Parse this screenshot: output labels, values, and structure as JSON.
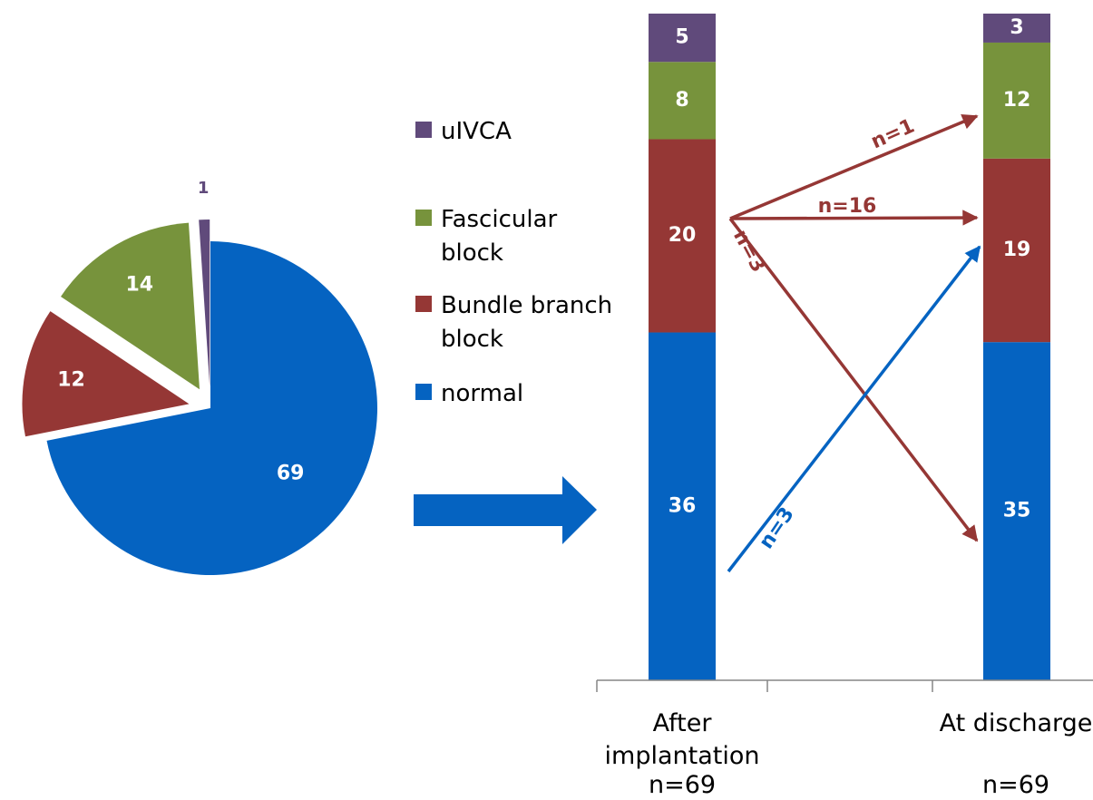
{
  "colors": {
    "normal": "#0563C1",
    "bundle_branch_block": "#953735",
    "fascicular_block": "#77933C",
    "uivca": "#604A7B",
    "axis": "#868686"
  },
  "legend": {
    "items": [
      {
        "key": "uivca",
        "lines": [
          "uIVCA"
        ]
      },
      {
        "key": "fascicular_block",
        "lines": [
          "Fascicular",
          "block"
        ]
      },
      {
        "key": "bundle_branch_block",
        "lines": [
          "Bundle branch",
          "block"
        ]
      },
      {
        "key": "normal",
        "lines": [
          "normal"
        ]
      }
    ]
  },
  "chart_data": [
    {
      "type": "pie",
      "exploded": true,
      "slices": [
        {
          "key": "normal",
          "value": 69,
          "label": "69"
        },
        {
          "key": "bundle_branch_block",
          "value": 12,
          "label": "12"
        },
        {
          "key": "fascicular_block",
          "value": 14,
          "label": "14"
        },
        {
          "key": "uivca",
          "value": 1,
          "label": "1"
        }
      ]
    },
    {
      "type": "bar",
      "stacked": true,
      "categories": [
        {
          "lines": [
            "After",
            "implantation"
          ],
          "n_label": "n=69"
        },
        {
          "lines": [
            "At discharge"
          ],
          "n_label": "n=69"
        }
      ],
      "series": [
        {
          "key": "normal",
          "values": [
            36,
            35
          ]
        },
        {
          "key": "bundle_branch_block",
          "values": [
            20,
            19
          ]
        },
        {
          "key": "fascicular_block",
          "values": [
            8,
            12
          ]
        },
        {
          "key": "uivca",
          "values": [
            5,
            3
          ]
        }
      ],
      "transitions": [
        {
          "from": "bundle_branch_block",
          "to": "fascicular_block",
          "label": "n=1",
          "color_key": "bundle_branch_block"
        },
        {
          "from": "bundle_branch_block",
          "to": "bundle_branch_block",
          "label": "n=16",
          "color_key": "bundle_branch_block"
        },
        {
          "from": "bundle_branch_block",
          "to": "normal",
          "label": "n=3",
          "color_key": "bundle_branch_block"
        },
        {
          "from": "normal",
          "to": "bundle_branch_block",
          "label": "n=3",
          "color_key": "normal"
        }
      ]
    }
  ]
}
